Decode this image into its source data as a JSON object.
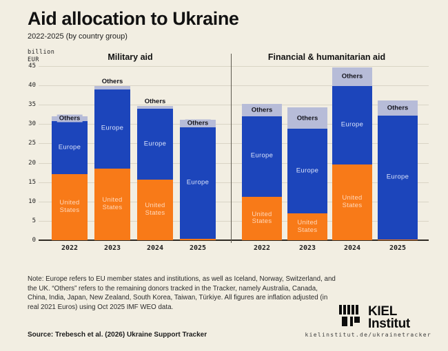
{
  "header": {
    "title": "Aid allocation to Ukraine",
    "subtitle": "2022-2025 (by country group)"
  },
  "axis": {
    "unit_label": "billion\nEUR"
  },
  "chart_data": {
    "type": "bar",
    "stacked": true,
    "unit": "billion EUR",
    "ylim": [
      0,
      45
    ],
    "ytick_step": 5,
    "grid": true,
    "categories": [
      "2022",
      "2023",
      "2024",
      "2025"
    ],
    "panels": [
      {
        "title": "Military aid",
        "series": [
          {
            "name": "United States",
            "color": "#f87a18",
            "values": [
              17.0,
              18.5,
              15.6,
              0.4
            ]
          },
          {
            "name": "Europe",
            "color": "#1c45bb",
            "values": [
              13.8,
              20.5,
              18.3,
              28.8
            ]
          },
          {
            "name": "Others",
            "color": "#b7bcd8",
            "values": [
              1.3,
              0.9,
              0.8,
              1.9
            ]
          }
        ],
        "totals": [
          32.1,
          39.9,
          34.7,
          31.1
        ],
        "others_label_position": [
          "inside",
          "above",
          "above",
          "inside"
        ]
      },
      {
        "title": "Financial & humanitarian aid",
        "series": [
          {
            "name": "United States",
            "color": "#f87a18",
            "values": [
              11.2,
              6.9,
              19.6,
              0.1
            ]
          },
          {
            "name": "Europe",
            "color": "#1c45bb",
            "values": [
              20.9,
              21.9,
              20.2,
              32.1
            ]
          },
          {
            "name": "Others",
            "color": "#b7bcd8",
            "values": [
              3.1,
              5.5,
              4.9,
              3.9
            ]
          }
        ],
        "totals": [
          35.2,
          34.3,
          44.7,
          36.1
        ],
        "others_label_position": [
          "inside",
          "inside",
          "inside",
          "inside"
        ]
      }
    ],
    "label_colors": {
      "united_states_text": "#ffd9bd",
      "europe_text": "#dde5fb",
      "others_text": "#14141c"
    }
  },
  "colors": {
    "background": "#f2eee2",
    "united_states": "#f87a18",
    "europe": "#1c45bb",
    "others": "#b7bcd8",
    "gridline": "#d9d4c5",
    "axis": "#2d2820"
  },
  "footer": {
    "note": "Note: Europe refers to EU member states and institutions, as well as Iceland, Norway, Switzerland, and the UK. “Others” refers to the remaining donors tracked in the Tracker, namely Australia, Canada, China, India, Japan, New Zealand, South Korea, Taiwan, Türkiye. All figures are inflation adjusted (in real 2021 Euros) using Oct 2025 IMF WEO data.",
    "source": "Source: Trebesch et al. (2026) Ukraine Support Tracker",
    "url": "kielinstitut.de/ukrainetracker",
    "logo_line1": "KIEL",
    "logo_line2": "Institut"
  }
}
